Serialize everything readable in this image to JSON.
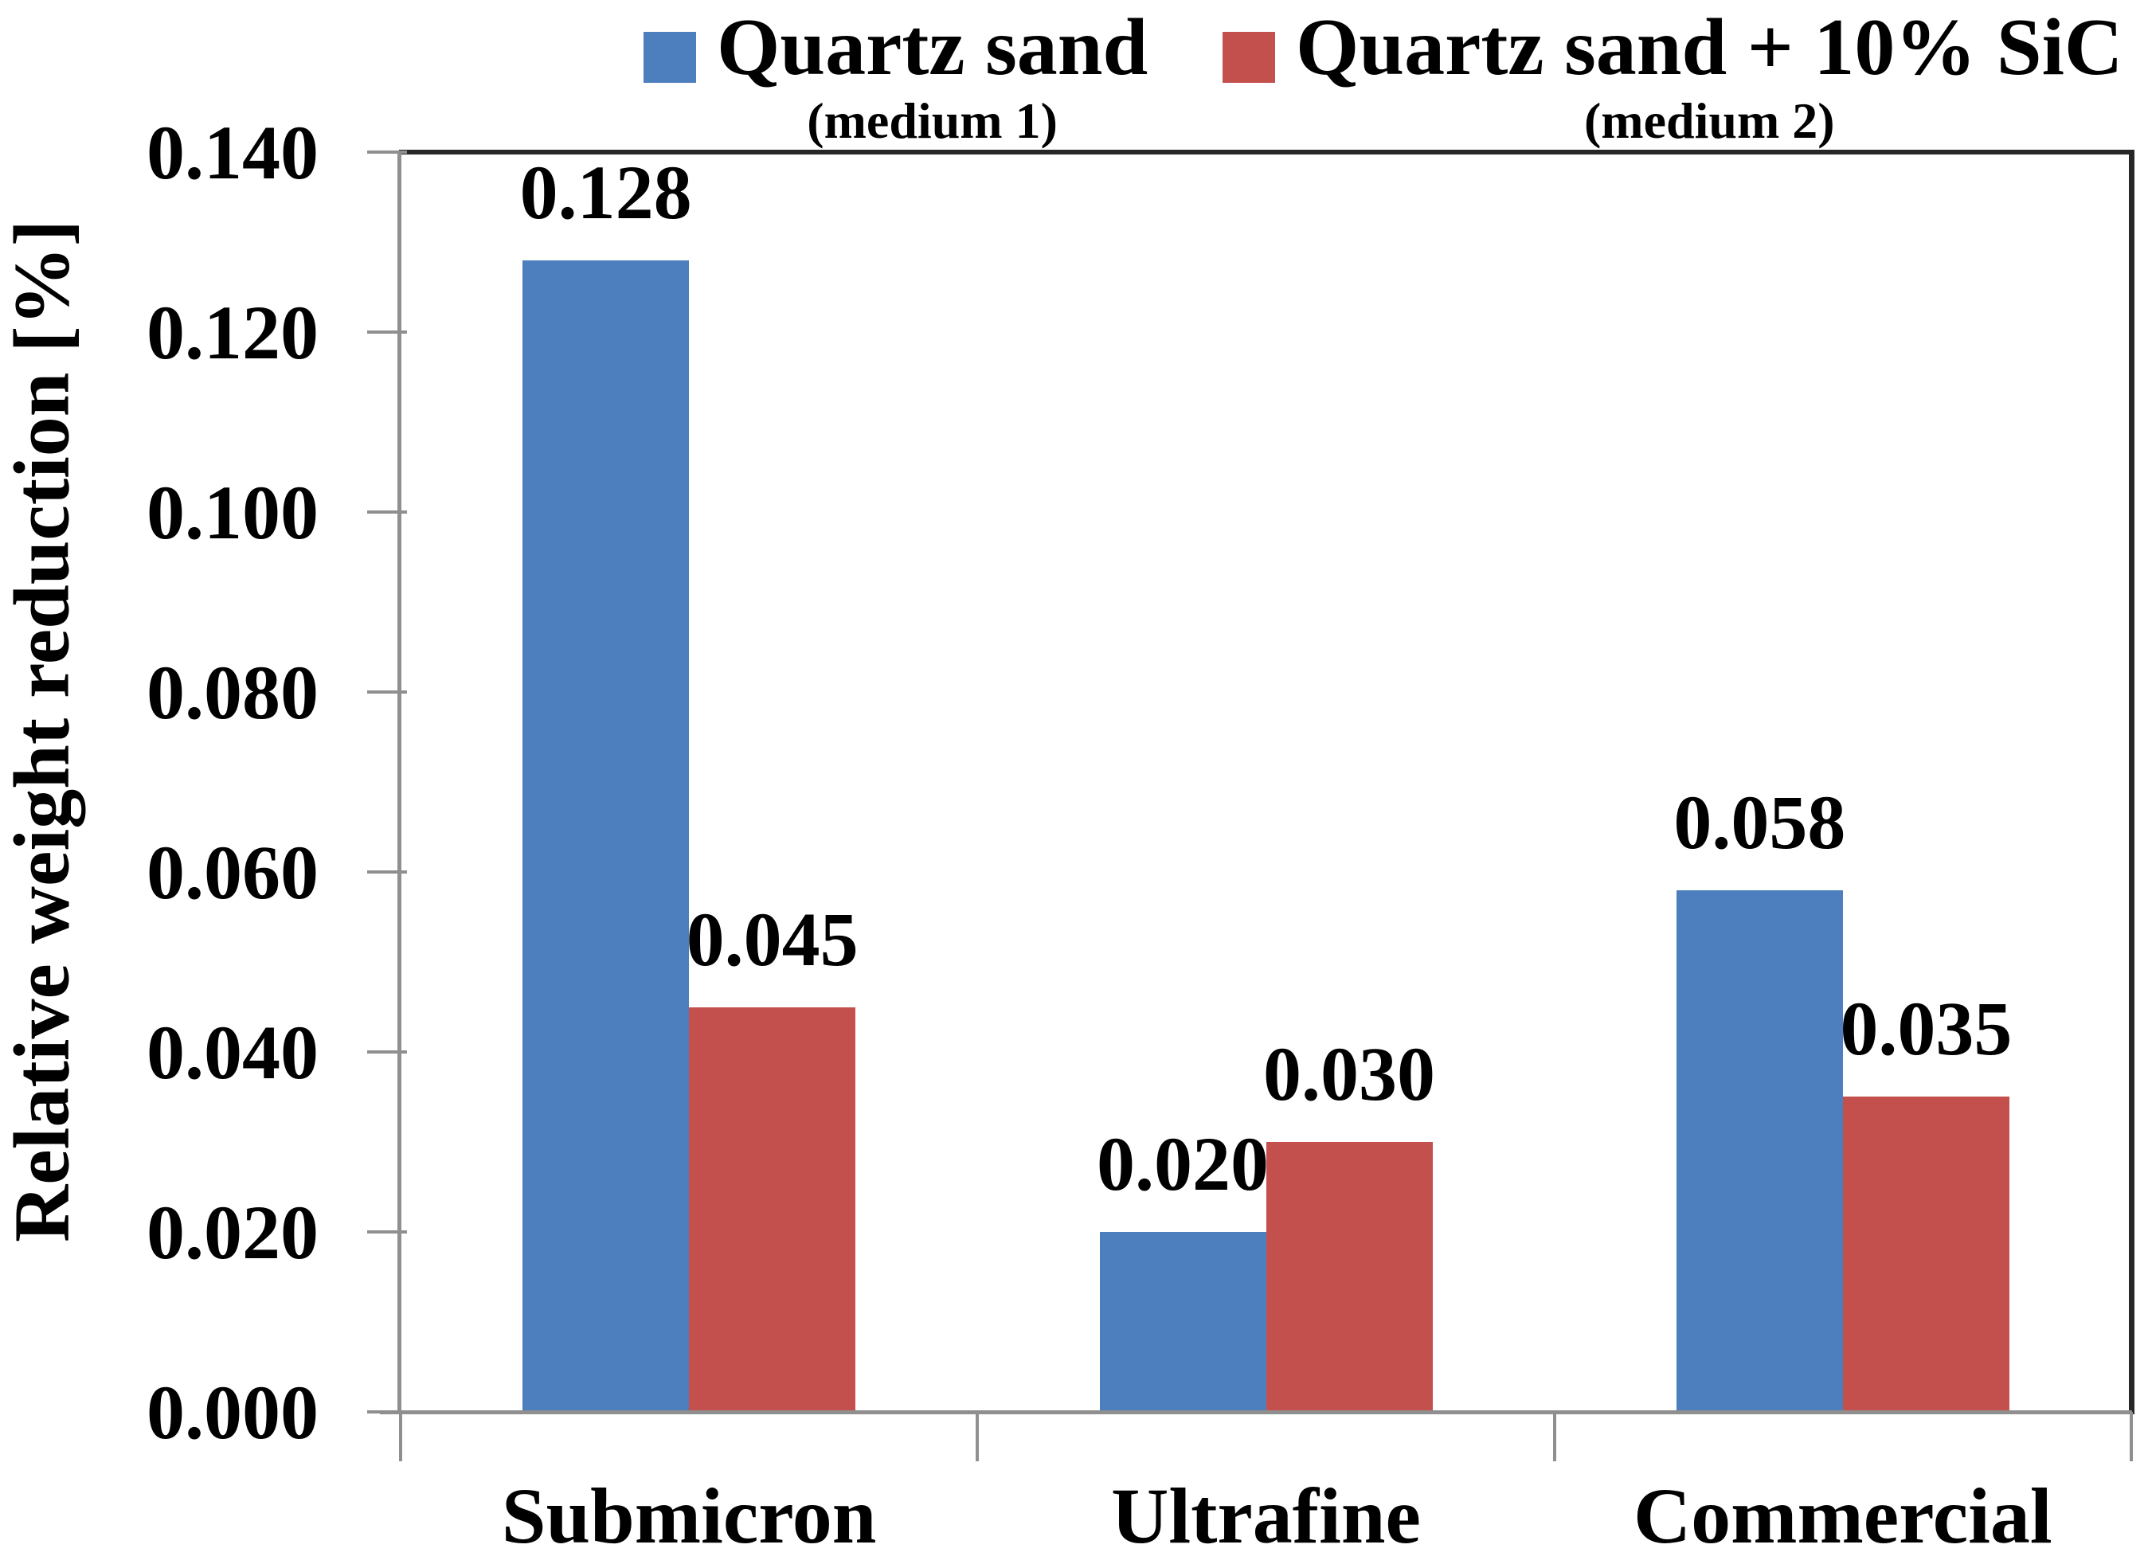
{
  "chart_data": {
    "type": "bar",
    "title": "",
    "ylabel": "Relative weight reduction [%]",
    "xlabel": "",
    "categories": [
      "Submicron",
      "Ultrafine",
      "Commercial"
    ],
    "series": [
      {
        "name": "Quartz sand",
        "medium": "(medium 1)",
        "color": "#4D7EBD",
        "values": [
          0.128,
          0.02,
          0.058
        ],
        "value_labels": [
          "0.128",
          "0.020",
          "0.058"
        ]
      },
      {
        "name": "Quartz sand + 10% SiC",
        "medium": "(medium 2)",
        "color": "#C4504E",
        "values": [
          0.045,
          0.03,
          0.035
        ],
        "value_labels": [
          "0.045",
          "0.030",
          "0.035"
        ]
      }
    ],
    "ylim": [
      0,
      0.14
    ],
    "ytick_step": 0.02,
    "yticks": [
      "0.140",
      "0.120",
      "0.100",
      "0.080",
      "0.060",
      "0.040",
      "0.020",
      "0.000"
    ],
    "grid": false,
    "legend_position": "top-center"
  },
  "colors": {
    "background": "#ffffff",
    "text": "#000000",
    "axis_line": "#8f8f8f",
    "plot_border": "#262626",
    "series_blue": "#4D7EBD",
    "series_red": "#C4504E"
  }
}
